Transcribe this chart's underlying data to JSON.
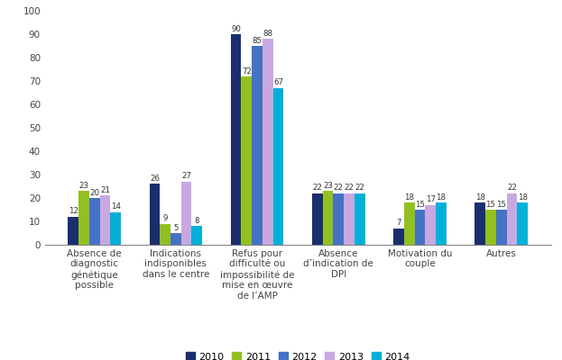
{
  "categories": [
    "Absence de\ndiagnostic\ngénétique\npossible",
    "Indications\nindisponibles\ndans le centre",
    "Refus pour\ndifficulté ou\nimpossibilité de\nmise en œuvre\nde l’AMP",
    "Absence\nd’indication de\nDPI",
    "Motivation du\ncouple",
    "Autres"
  ],
  "years": [
    "2010",
    "2011",
    "2012",
    "2013",
    "2014"
  ],
  "colors": [
    "#1a2e6e",
    "#92c021",
    "#4472c4",
    "#c8a8e0",
    "#00b0d8"
  ],
  "values": {
    "2010": [
      12,
      26,
      90,
      22,
      7,
      18
    ],
    "2011": [
      23,
      9,
      72,
      23,
      18,
      15
    ],
    "2012": [
      20,
      5,
      85,
      22,
      15,
      15
    ],
    "2013": [
      21,
      27,
      88,
      22,
      17,
      22
    ],
    "2014": [
      14,
      8,
      67,
      22,
      18,
      18
    ]
  },
  "ylim": [
    0,
    100
  ],
  "yticks": [
    0,
    10,
    20,
    30,
    40,
    50,
    60,
    70,
    80,
    90,
    100
  ],
  "bar_width": 0.13,
  "tick_label_fontsize": 7.5,
  "legend_fontsize": 8,
  "value_fontsize": 6.2
}
